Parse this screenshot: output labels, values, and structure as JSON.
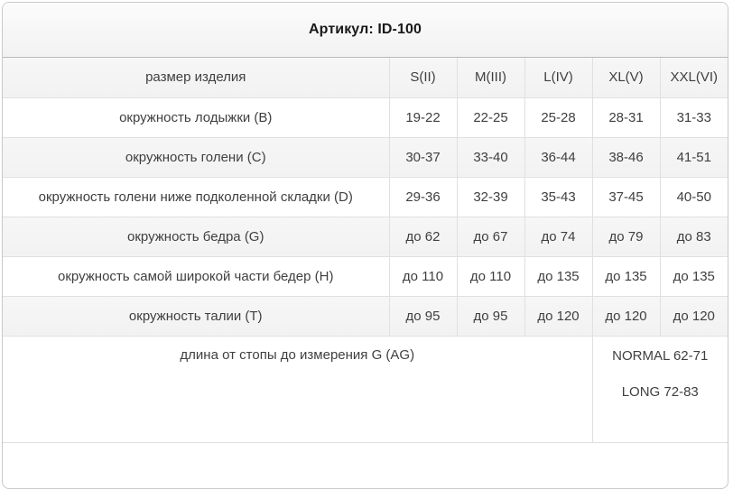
{
  "card": {
    "title": "Артикул: ID-100",
    "size_header_label": "размер изделия",
    "sizes": [
      "S(II)",
      "M(III)",
      "L(IV)",
      "XL(V)",
      "XXL(VI)"
    ],
    "rows": [
      {
        "label": "окружность лодыжки (B)",
        "values": [
          "19-22",
          "22-25",
          "25-28",
          "28-31",
          "31-33"
        ]
      },
      {
        "label": "окружность голени (C)",
        "values": [
          "30-37",
          "33-40",
          "36-44",
          "38-46",
          "41-51"
        ]
      },
      {
        "label": "окружность голени ниже подколенной складки (D)",
        "values": [
          "29-36",
          "32-39",
          "35-43",
          "37-45",
          "40-50"
        ]
      },
      {
        "label": "окружность бедра (G)",
        "values": [
          "до 62",
          "до 67",
          "до 74",
          "до 79",
          "до 83"
        ]
      },
      {
        "label": "окружность самой широкой части бедер (H)",
        "values": [
          "до 110",
          "до 110",
          "до 135",
          "до 135",
          "до 135"
        ]
      },
      {
        "label": "окружность талии (T)",
        "values": [
          "до 95",
          "до 95",
          "до 120",
          "до 120",
          "до 120"
        ]
      }
    ],
    "length_row": {
      "label": "длина от стопы до измерения G (AG)",
      "values": [
        "NORMAL 62-71",
        "LONG 72-83"
      ]
    }
  },
  "colors": {
    "card_border": "#c9c9c9",
    "header_separator": "#b9b9b9",
    "cell_border": "#e0e0e0",
    "stripe_background": "#f4f4f4",
    "text": "#3f3f3f",
    "title_text": "#1a1a1a"
  },
  "chart_data": {
    "type": "table",
    "title": "Артикул: ID-100",
    "columns": [
      "размер изделия",
      "S(II)",
      "M(III)",
      "L(IV)",
      "XL(V)",
      "XXL(VI)"
    ],
    "rows": [
      [
        "окружность лодыжки (B)",
        "19-22",
        "22-25",
        "25-28",
        "28-31",
        "31-33"
      ],
      [
        "окружность голени (C)",
        "30-37",
        "33-40",
        "36-44",
        "38-46",
        "41-51"
      ],
      [
        "окружность голени ниже подколенной складки (D)",
        "29-36",
        "32-39",
        "35-43",
        "37-45",
        "40-50"
      ],
      [
        "окружность бедра (G)",
        "до 62",
        "до 67",
        "до 74",
        "до 79",
        "до 83"
      ],
      [
        "окружность самой широкой части бедер (H)",
        "до 110",
        "до 110",
        "до 135",
        "до 135",
        "до 135"
      ],
      [
        "окружность талии (T)",
        "до 95",
        "до 95",
        "до 120",
        "до 120",
        "до 120"
      ],
      [
        "длина от стопы до измерения G (AG)",
        "NORMAL 62-71 / LONG 72-83"
      ]
    ]
  }
}
